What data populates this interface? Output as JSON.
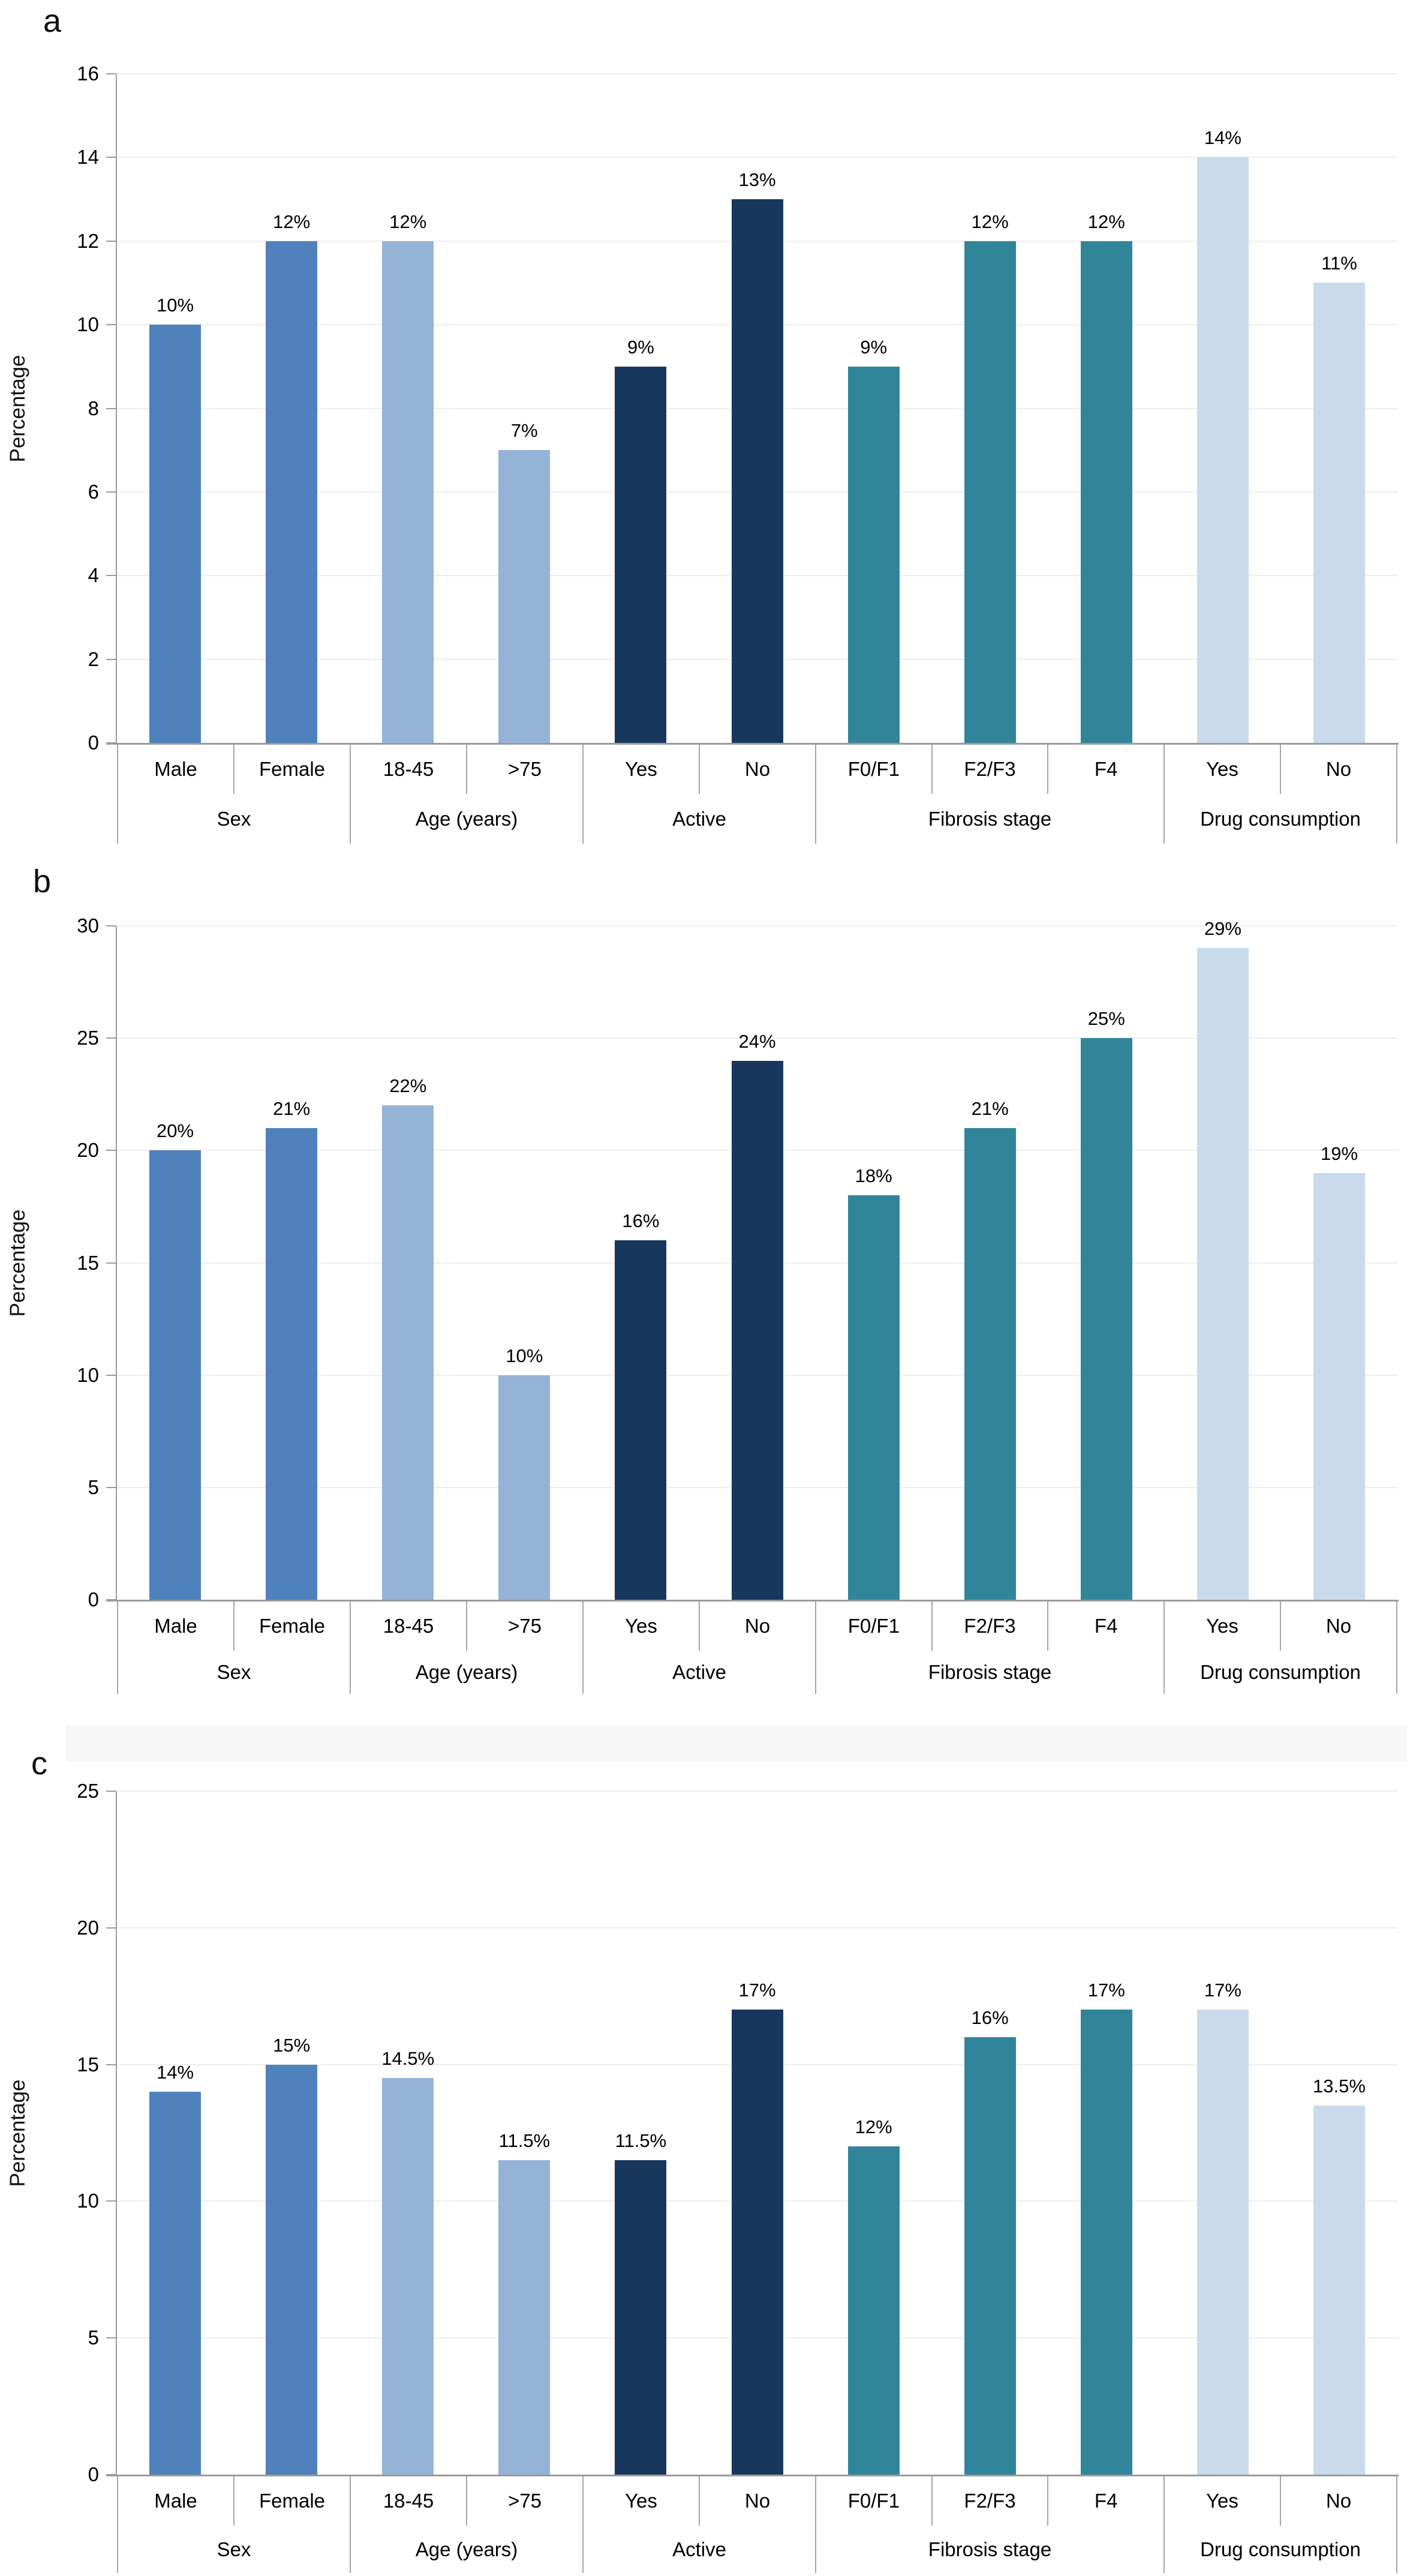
{
  "figure": {
    "value_suffix": "%",
    "group_colors": {
      "Sex": "#4F81BD",
      "Age (years)": "#95B3D7",
      "Active": "#17375D",
      "Fibrosis stage": "#31859B",
      "Drug consumption": "#C9DAEC"
    }
  },
  "chart_data": [
    {
      "panel": "a",
      "type": "bar",
      "title": "",
      "xlabel": "",
      "ylabel": "Percentage",
      "ylim": [
        0,
        16
      ],
      "yticks": [
        0,
        2,
        4,
        6,
        8,
        10,
        12,
        14,
        16
      ],
      "grid": true,
      "legend_position": "none",
      "groups": [
        {
          "label": "Sex",
          "color": "#4F81BD",
          "categories": [
            "Male",
            "Female"
          ],
          "values": [
            10,
            12
          ],
          "labels": [
            "10%",
            "12%"
          ]
        },
        {
          "label": "Age (years)",
          "color": "#95B3D7",
          "categories": [
            "18-45",
            ">75"
          ],
          "values": [
            12,
            7
          ],
          "labels": [
            "12%",
            "7%"
          ]
        },
        {
          "label": "Active",
          "color": "#17375D",
          "categories": [
            "Yes",
            "No"
          ],
          "values": [
            9,
            13
          ],
          "labels": [
            "9%",
            "13%"
          ]
        },
        {
          "label": "Fibrosis stage",
          "color": "#31859B",
          "categories": [
            "F0/F1",
            "F2/F3",
            "F4"
          ],
          "values": [
            9,
            12,
            12
          ],
          "labels": [
            "9%",
            "12%",
            "12%"
          ]
        },
        {
          "label": "Drug consumption",
          "color": "#C9DAEC",
          "categories": [
            "Yes",
            "No"
          ],
          "values": [
            14,
            11
          ],
          "labels": [
            "14%",
            "11%"
          ]
        }
      ]
    },
    {
      "panel": "b",
      "type": "bar",
      "title": "",
      "xlabel": "",
      "ylabel": "Percentage",
      "ylim": [
        0,
        30
      ],
      "yticks": [
        0,
        5,
        10,
        15,
        20,
        25,
        30
      ],
      "grid": true,
      "legend_position": "none",
      "groups": [
        {
          "label": "Sex",
          "color": "#4F81BD",
          "categories": [
            "Male",
            "Female"
          ],
          "values": [
            20,
            21
          ],
          "labels": [
            "20%",
            "21%"
          ]
        },
        {
          "label": "Age (years)",
          "color": "#95B3D7",
          "categories": [
            "18-45",
            ">75"
          ],
          "values": [
            22,
            10
          ],
          "labels": [
            "22%",
            "10%"
          ]
        },
        {
          "label": "Active",
          "color": "#17375D",
          "categories": [
            "Yes",
            "No"
          ],
          "values": [
            16,
            24
          ],
          "labels": [
            "16%",
            "24%"
          ]
        },
        {
          "label": "Fibrosis stage",
          "color": "#31859B",
          "categories": [
            "F0/F1",
            "F2/F3",
            "F4"
          ],
          "values": [
            18,
            21,
            25
          ],
          "labels": [
            "18%",
            "21%",
            "25%"
          ]
        },
        {
          "label": "Drug consumption",
          "color": "#C9DAEC",
          "categories": [
            "Yes",
            "No"
          ],
          "values": [
            29,
            19
          ],
          "labels": [
            "29%",
            "19%"
          ]
        }
      ]
    },
    {
      "panel": "c",
      "type": "bar",
      "title": "",
      "xlabel": "",
      "ylabel": "Percentage",
      "ylim": [
        0,
        25
      ],
      "yticks": [
        0,
        5,
        10,
        15,
        20,
        25
      ],
      "grid": true,
      "legend_position": "none",
      "groups": [
        {
          "label": "Sex",
          "color": "#4F81BD",
          "categories": [
            "Male",
            "Female"
          ],
          "values": [
            14,
            15
          ],
          "labels": [
            "14%",
            "15%"
          ]
        },
        {
          "label": "Age (years)",
          "color": "#95B3D7",
          "categories": [
            "18-45",
            ">75"
          ],
          "values": [
            14.5,
            11.5
          ],
          "labels": [
            "14.5%",
            "11.5%"
          ]
        },
        {
          "label": "Active",
          "color": "#17375D",
          "categories": [
            "Yes",
            "No"
          ],
          "values": [
            11.5,
            17
          ],
          "labels": [
            "11.5%",
            "17%"
          ]
        },
        {
          "label": "Fibrosis stage",
          "color": "#31859B",
          "categories": [
            "F0/F1",
            "F2/F3",
            "F4"
          ],
          "values": [
            12,
            16,
            17
          ],
          "labels": [
            "12%",
            "16%",
            "17%"
          ]
        },
        {
          "label": "Drug consumption",
          "color": "#C9DAEC",
          "categories": [
            "Yes",
            "No"
          ],
          "values": [
            17,
            13.5
          ],
          "labels": [
            "17%",
            "13.5%"
          ]
        }
      ]
    }
  ]
}
